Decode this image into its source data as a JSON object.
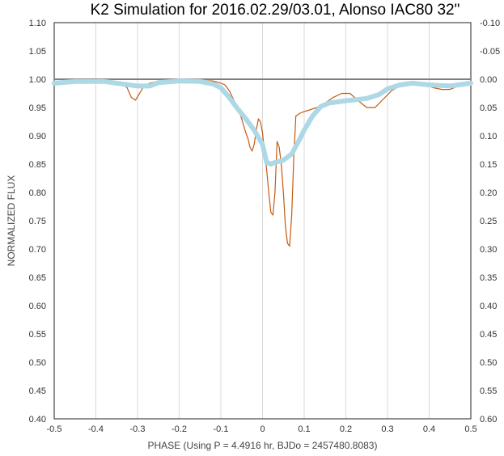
{
  "chart_data": {
    "type": "line",
    "title": "K2 Simulation for 2016.02.29/03.01, Alonso IAC80 32\"",
    "xlabel": "PHASE (Using P = 4.4916 hr, BJDo = 2457480.8083)",
    "ylabel": "NORMALIZED FLUX",
    "xlim": [
      -0.5,
      0.5
    ],
    "ylim": [
      0.4,
      1.1
    ],
    "y2lim": [
      -0.1,
      0.6
    ],
    "y2_reversed": true,
    "x_ticks": [
      "-0.5",
      "-0.4",
      "-0.3",
      "-0.2",
      "-0.1",
      "0",
      "0.1",
      "0.2",
      "0.3",
      "0.4",
      "0.5"
    ],
    "y_ticks": [
      "1.10",
      "1.05",
      "1.00",
      "0.95",
      "0.90",
      "0.85",
      "0.80",
      "0.75",
      "0.70",
      "0.65",
      "0.60",
      "0.55",
      "0.50",
      "0.45",
      "0.40"
    ],
    "y2_ticks": [
      "-0.10",
      "-0.05",
      "0.00",
      "0.05",
      "0.10",
      "0.15",
      "0.20",
      "0.25",
      "0.30",
      "0.35",
      "0.40",
      "0.45",
      "0.50",
      "0.55",
      "0.60"
    ],
    "grid": "vertical",
    "reference_line": {
      "y": 1.0,
      "color": "#7f7f7f"
    },
    "series": [
      {
        "style": "thin-line",
        "color": "#c55a11",
        "x": [
          -0.5,
          -0.42,
          -0.36,
          -0.34,
          -0.325,
          -0.315,
          -0.305,
          -0.295,
          -0.285,
          -0.27,
          -0.25,
          -0.2,
          -0.15,
          -0.12,
          -0.11,
          -0.1,
          -0.09,
          -0.08,
          -0.07,
          -0.06,
          -0.05,
          -0.04,
          -0.035,
          -0.03,
          -0.025,
          -0.02,
          -0.015,
          -0.01,
          -0.005,
          0,
          0.005,
          0.01,
          0.015,
          0.02,
          0.025,
          0.03,
          0.035,
          0.04,
          0.045,
          0.05,
          0.055,
          0.06,
          0.065,
          0.07,
          0.075,
          0.08,
          0.09,
          0.1,
          0.11,
          0.13,
          0.15,
          0.17,
          0.19,
          0.21,
          0.23,
          0.25,
          0.27,
          0.29,
          0.31,
          0.33,
          0.35,
          0.37,
          0.39,
          0.41,
          0.43,
          0.45,
          0.47,
          0.5
        ],
        "y": [
          0.995,
          0.997,
          0.997,
          0.995,
          0.985,
          0.968,
          0.963,
          0.975,
          0.988,
          0.993,
          0.997,
          0.998,
          0.998,
          0.997,
          0.995,
          0.993,
          0.99,
          0.98,
          0.965,
          0.95,
          0.93,
          0.905,
          0.895,
          0.88,
          0.873,
          0.885,
          0.91,
          0.93,
          0.925,
          0.905,
          0.87,
          0.84,
          0.8,
          0.765,
          0.76,
          0.8,
          0.89,
          0.88,
          0.85,
          0.8,
          0.74,
          0.71,
          0.705,
          0.76,
          0.86,
          0.935,
          0.94,
          0.943,
          0.945,
          0.95,
          0.958,
          0.968,
          0.975,
          0.975,
          0.962,
          0.95,
          0.95,
          0.965,
          0.98,
          0.988,
          0.99,
          0.993,
          0.99,
          0.985,
          0.982,
          0.982,
          0.988,
          0.993
        ]
      },
      {
        "style": "thick-line",
        "color": "#add8e6",
        "x": [
          -0.5,
          -0.45,
          -0.38,
          -0.33,
          -0.3,
          -0.27,
          -0.25,
          -0.2,
          -0.15,
          -0.12,
          -0.1,
          -0.08,
          -0.06,
          -0.04,
          -0.02,
          0,
          0.01,
          0.02,
          0.03,
          0.05,
          0.07,
          0.09,
          0.1,
          0.12,
          0.14,
          0.16,
          0.2,
          0.25,
          0.28,
          0.3,
          0.33,
          0.36,
          0.4,
          0.45,
          0.5
        ],
        "y": [
          0.993,
          0.996,
          0.996,
          0.991,
          0.988,
          0.988,
          0.994,
          0.997,
          0.996,
          0.992,
          0.985,
          0.968,
          0.948,
          0.93,
          0.91,
          0.885,
          0.853,
          0.85,
          0.853,
          0.857,
          0.868,
          0.895,
          0.91,
          0.935,
          0.952,
          0.958,
          0.962,
          0.966,
          0.973,
          0.983,
          0.99,
          0.993,
          0.99,
          0.988,
          0.993
        ]
      }
    ]
  }
}
